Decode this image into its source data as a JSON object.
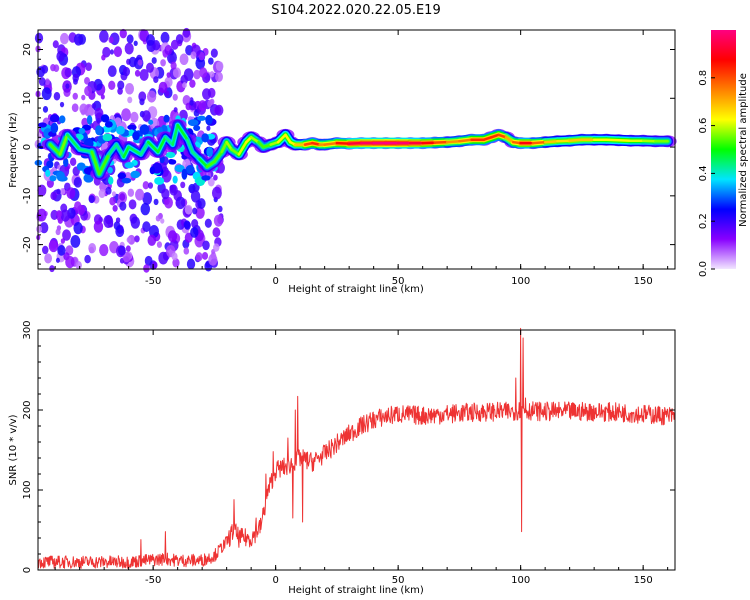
{
  "title": "S104.2022.020.22.05.E19",
  "chart_data": [
    {
      "type": "heatmap",
      "xlabel": "Height of straight line (km)",
      "ylabel": "Frequency (Hz)",
      "xlim": [
        -97,
        163
      ],
      "ylim": [
        -25,
        24
      ],
      "xticks": [
        -50,
        0,
        50,
        100,
        150
      ],
      "yticks": [
        -20,
        -10,
        0,
        10,
        20
      ],
      "colorbar": {
        "label": "Normalized spectral amplitude",
        "range": [
          0,
          1
        ],
        "ticks": [
          0.0,
          0.2,
          0.4,
          0.6,
          0.8
        ],
        "tick_labels": [
          "0.0",
          "0.2",
          "0.4",
          "0.6",
          "0.8"
        ],
        "colormap": [
          "#f2e6ff",
          "#8800ff",
          "#0000ff",
          "#00e5ff",
          "#00ff00",
          "#ffff00",
          "#ff8000",
          "#ff0000",
          "#ff0080"
        ]
      },
      "ridge": [
        {
          "x": -92,
          "f": 0.5,
          "a": 0.4
        },
        {
          "x": -88,
          "f": -1.5,
          "a": 0.55
        },
        {
          "x": -85,
          "f": 2.5,
          "a": 0.45
        },
        {
          "x": -80,
          "f": -0.5,
          "a": 0.35
        },
        {
          "x": -75,
          "f": -1.0,
          "a": 0.4
        },
        {
          "x": -72,
          "f": -5.5,
          "a": 0.55
        },
        {
          "x": -68,
          "f": -1.5,
          "a": 0.4
        },
        {
          "x": -65,
          "f": 0.5,
          "a": 0.35
        },
        {
          "x": -62,
          "f": -2.0,
          "a": 0.4
        },
        {
          "x": -60,
          "f": 0.0,
          "a": 0.45
        },
        {
          "x": -55,
          "f": -1.5,
          "a": 0.35
        },
        {
          "x": -52,
          "f": 1.0,
          "a": 0.4
        },
        {
          "x": -48,
          "f": -1.0,
          "a": 0.45
        },
        {
          "x": -45,
          "f": 2.0,
          "a": 0.4
        },
        {
          "x": -42,
          "f": 0.5,
          "a": 0.35
        },
        {
          "x": -40,
          "f": 4.5,
          "a": 0.45
        },
        {
          "x": -36,
          "f": 1.5,
          "a": 0.4
        },
        {
          "x": -34,
          "f": -1.0,
          "a": 0.35
        },
        {
          "x": -31,
          "f": -2.5,
          "a": 0.4
        },
        {
          "x": -28,
          "f": -4.0,
          "a": 0.45
        },
        {
          "x": -25,
          "f": -3.0,
          "a": 0.5
        },
        {
          "x": -22,
          "f": -1.0,
          "a": 0.45
        },
        {
          "x": -20,
          "f": 1.0,
          "a": 0.55
        },
        {
          "x": -18,
          "f": -0.5,
          "a": 0.5
        },
        {
          "x": -15,
          "f": -1.5,
          "a": 0.5
        },
        {
          "x": -12,
          "f": 1.0,
          "a": 0.6
        },
        {
          "x": -10,
          "f": 2.0,
          "a": 0.55
        },
        {
          "x": -7,
          "f": 1.0,
          "a": 0.5
        },
        {
          "x": -5,
          "f": 0.0,
          "a": 0.45
        },
        {
          "x": -2,
          "f": 0.5,
          "a": 0.5
        },
        {
          "x": 1,
          "f": 1.0,
          "a": 0.55
        },
        {
          "x": 4,
          "f": 2.5,
          "a": 0.6
        },
        {
          "x": 6,
          "f": 1.0,
          "a": 0.55
        },
        {
          "x": 8,
          "f": 0.5,
          "a": 0.6
        },
        {
          "x": 12,
          "f": 0.5,
          "a": 0.65
        },
        {
          "x": 15,
          "f": 0.8,
          "a": 0.85
        },
        {
          "x": 18,
          "f": 0.5,
          "a": 0.7
        },
        {
          "x": 20,
          "f": 0.5,
          "a": 0.65
        },
        {
          "x": 25,
          "f": 0.8,
          "a": 0.75
        },
        {
          "x": 30,
          "f": 0.7,
          "a": 0.85
        },
        {
          "x": 35,
          "f": 0.8,
          "a": 0.9
        },
        {
          "x": 40,
          "f": 0.8,
          "a": 0.92
        },
        {
          "x": 45,
          "f": 0.8,
          "a": 0.95
        },
        {
          "x": 50,
          "f": 0.8,
          "a": 0.95
        },
        {
          "x": 55,
          "f": 0.8,
          "a": 0.9
        },
        {
          "x": 60,
          "f": 0.8,
          "a": 0.85
        },
        {
          "x": 65,
          "f": 0.9,
          "a": 0.8
        },
        {
          "x": 70,
          "f": 1.0,
          "a": 0.7
        },
        {
          "x": 75,
          "f": 1.2,
          "a": 0.65
        },
        {
          "x": 80,
          "f": 1.5,
          "a": 0.75
        },
        {
          "x": 85,
          "f": 1.5,
          "a": 0.8
        },
        {
          "x": 88,
          "f": 2.0,
          "a": 0.75
        },
        {
          "x": 91,
          "f": 2.5,
          "a": 0.8
        },
        {
          "x": 94,
          "f": 2.0,
          "a": 0.7
        },
        {
          "x": 97,
          "f": 1.0,
          "a": 0.6
        },
        {
          "x": 100,
          "f": 0.8,
          "a": 0.85
        },
        {
          "x": 105,
          "f": 0.8,
          "a": 0.8
        },
        {
          "x": 110,
          "f": 1.0,
          "a": 0.65
        },
        {
          "x": 115,
          "f": 1.2,
          "a": 0.6
        },
        {
          "x": 120,
          "f": 1.3,
          "a": 0.6
        },
        {
          "x": 125,
          "f": 1.5,
          "a": 0.65
        },
        {
          "x": 130,
          "f": 1.5,
          "a": 0.6
        },
        {
          "x": 135,
          "f": 1.5,
          "a": 0.55
        },
        {
          "x": 140,
          "f": 1.4,
          "a": 0.6
        },
        {
          "x": 145,
          "f": 1.3,
          "a": 0.55
        },
        {
          "x": 150,
          "f": 1.3,
          "a": 0.55
        },
        {
          "x": 155,
          "f": 1.2,
          "a": 0.5
        },
        {
          "x": 160,
          "f": 1.2,
          "a": 0.5
        }
      ]
    },
    {
      "type": "line",
      "xlabel": "Height of straight line (km)",
      "ylabel": "SNR (10 * v/v)",
      "xlim": [
        -97,
        163
      ],
      "ylim": [
        0,
        300
      ],
      "xticks": [
        -50,
        0,
        50,
        100,
        150
      ],
      "yticks": [
        0,
        100,
        200,
        300
      ],
      "color": "#ee3333",
      "trend": [
        [
          -97,
          10
        ],
        [
          -60,
          10
        ],
        [
          -45,
          14
        ],
        [
          -40,
          12
        ],
        [
          -30,
          12
        ],
        [
          -25,
          18
        ],
        [
          -20,
          35
        ],
        [
          -17,
          50
        ],
        [
          -15,
          40
        ],
        [
          -10,
          40
        ],
        [
          -6,
          55
        ],
        [
          -3,
          100
        ],
        [
          0,
          125
        ],
        [
          5,
          130
        ],
        [
          10,
          140
        ],
        [
          15,
          135
        ],
        [
          20,
          145
        ],
        [
          25,
          158
        ],
        [
          30,
          170
        ],
        [
          35,
          180
        ],
        [
          40,
          188
        ],
        [
          45,
          192
        ],
        [
          50,
          195
        ],
        [
          60,
          193
        ],
        [
          70,
          195
        ],
        [
          80,
          197
        ],
        [
          90,
          198
        ],
        [
          96,
          198
        ],
        [
          100,
          200
        ],
        [
          110,
          198
        ],
        [
          120,
          198
        ],
        [
          130,
          198
        ],
        [
          140,
          197
        ],
        [
          150,
          195
        ],
        [
          163,
          192
        ]
      ],
      "noise": 12,
      "spikes": [
        [
          -55,
          38
        ],
        [
          -45,
          48
        ],
        [
          -17,
          88
        ],
        [
          -8,
          65
        ],
        [
          -4,
          120
        ],
        [
          -1,
          148
        ],
        [
          5,
          165
        ],
        [
          7,
          65
        ],
        [
          8,
          200
        ],
        [
          9,
          217
        ],
        [
          11,
          60
        ],
        [
          100,
          305
        ],
        [
          101,
          290
        ],
        [
          98,
          240
        ],
        [
          100.5,
          48
        ],
        [
          102,
          215
        ]
      ]
    }
  ]
}
